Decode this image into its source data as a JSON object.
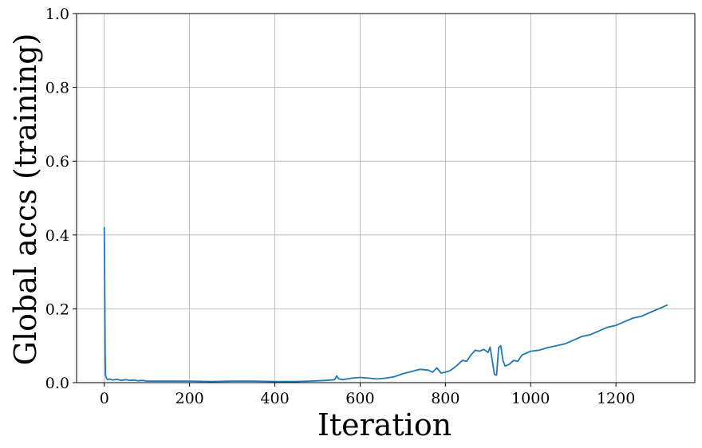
{
  "chart_data": {
    "type": "line",
    "title": "",
    "xlabel": "Iteration",
    "ylabel": "Global accs (training)",
    "xlim": [
      -65,
      1385
    ],
    "ylim": [
      0.0,
      1.0
    ],
    "xticks": [
      0,
      200,
      400,
      600,
      800,
      1000,
      1200
    ],
    "xtick_labels": [
      "0",
      "200",
      "400",
      "600",
      "800",
      "1000",
      "1200"
    ],
    "yticks": [
      0.0,
      0.2,
      0.4,
      0.6,
      0.8,
      1.0
    ],
    "ytick_labels": [
      "0.0",
      "0.2",
      "0.4",
      "0.6",
      "0.8",
      "1.0"
    ],
    "grid": true,
    "legend": false,
    "series": [
      {
        "color": "#1f77b4",
        "x": [
          0,
          1,
          2,
          3,
          5,
          8,
          12,
          20,
          30,
          40,
          50,
          60,
          70,
          80,
          90,
          100,
          120,
          150,
          200,
          250,
          300,
          350,
          400,
          450,
          480,
          500,
          520,
          540,
          545,
          550,
          560,
          580,
          600,
          620,
          640,
          660,
          680,
          700,
          720,
          740,
          760,
          770,
          780,
          790,
          800,
          810,
          820,
          830,
          840,
          850,
          860,
          870,
          880,
          890,
          900,
          905,
          910,
          915,
          920,
          925,
          930,
          935,
          940,
          950,
          960,
          970,
          980,
          990,
          1000,
          1020,
          1040,
          1060,
          1080,
          1100,
          1120,
          1140,
          1160,
          1180,
          1200,
          1220,
          1240,
          1260,
          1280,
          1300,
          1310,
          1320
        ],
        "y": [
          0.42,
          0.25,
          0.08,
          0.02,
          0.012,
          0.008,
          0.01,
          0.007,
          0.009,
          0.006,
          0.008,
          0.006,
          0.007,
          0.005,
          0.006,
          0.004,
          0.004,
          0.004,
          0.004,
          0.003,
          0.004,
          0.004,
          0.003,
          0.003,
          0.004,
          0.005,
          0.006,
          0.008,
          0.018,
          0.01,
          0.008,
          0.012,
          0.014,
          0.012,
          0.01,
          0.012,
          0.016,
          0.024,
          0.03,
          0.036,
          0.034,
          0.028,
          0.04,
          0.026,
          0.028,
          0.032,
          0.04,
          0.05,
          0.06,
          0.058,
          0.075,
          0.088,
          0.085,
          0.09,
          0.082,
          0.096,
          0.06,
          0.022,
          0.02,
          0.095,
          0.1,
          0.06,
          0.045,
          0.05,
          0.06,
          0.058,
          0.075,
          0.08,
          0.085,
          0.088,
          0.095,
          0.1,
          0.105,
          0.115,
          0.125,
          0.13,
          0.14,
          0.15,
          0.155,
          0.165,
          0.175,
          0.18,
          0.19,
          0.2,
          0.205,
          0.21
        ]
      }
    ]
  }
}
